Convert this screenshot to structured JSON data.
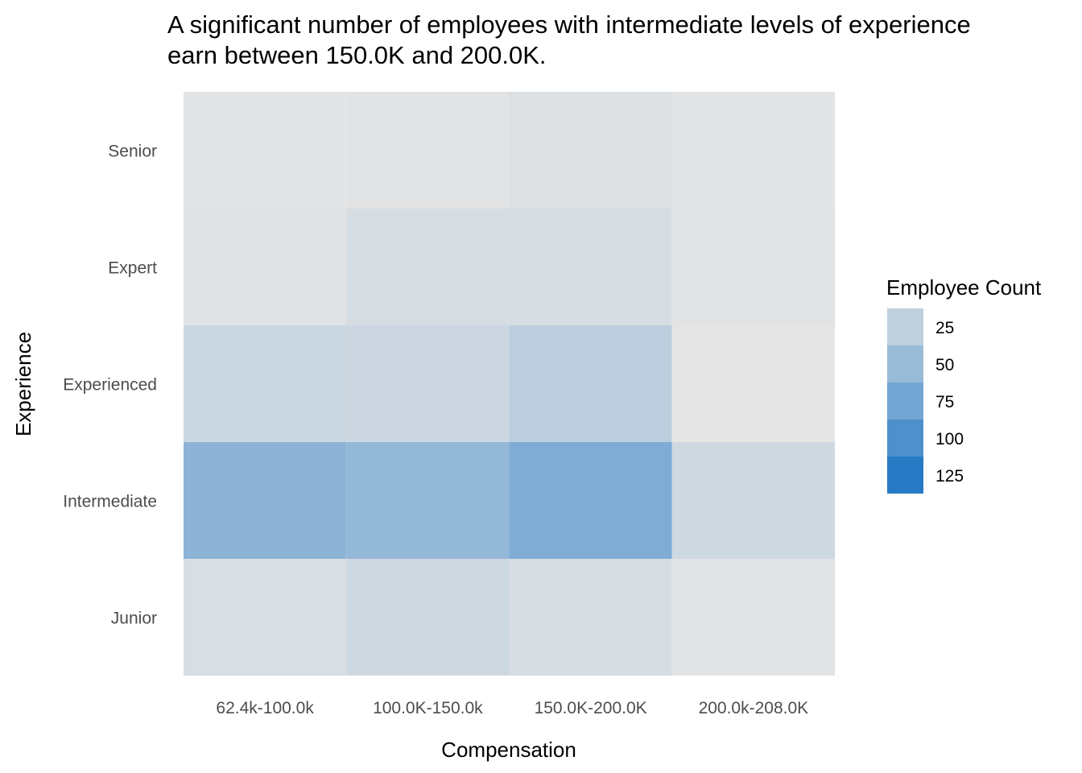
{
  "chart_data": {
    "type": "heatmap",
    "title": "A significant number of employees with intermediate levels of experience earn between 150.0K and 200.0K.",
    "xlabel": "Compensation",
    "ylabel": "Experience",
    "x_categories": [
      "62.4k-100.0k",
      "100.0K-150.0k",
      "150.0K-200.0K",
      "200.0k-208.0K"
    ],
    "y_categories": [
      "Senior",
      "Expert",
      "Experienced",
      "Intermediate",
      "Junior"
    ],
    "values": [
      [
        1,
        2,
        6,
        1
      ],
      [
        3,
        10,
        10,
        2
      ],
      [
        18,
        16,
        26,
        0
      ],
      [
        58,
        53,
        67,
        15
      ],
      [
        8,
        15,
        9,
        2
      ]
    ],
    "legend": {
      "title": "Employee Count",
      "breaks": [
        25,
        50,
        75,
        100,
        125
      ],
      "placement": "right",
      "low_color": "#e5e5e5",
      "high_color": "#1f77c4",
      "value_range": [
        0,
        130
      ]
    },
    "grid": false
  }
}
